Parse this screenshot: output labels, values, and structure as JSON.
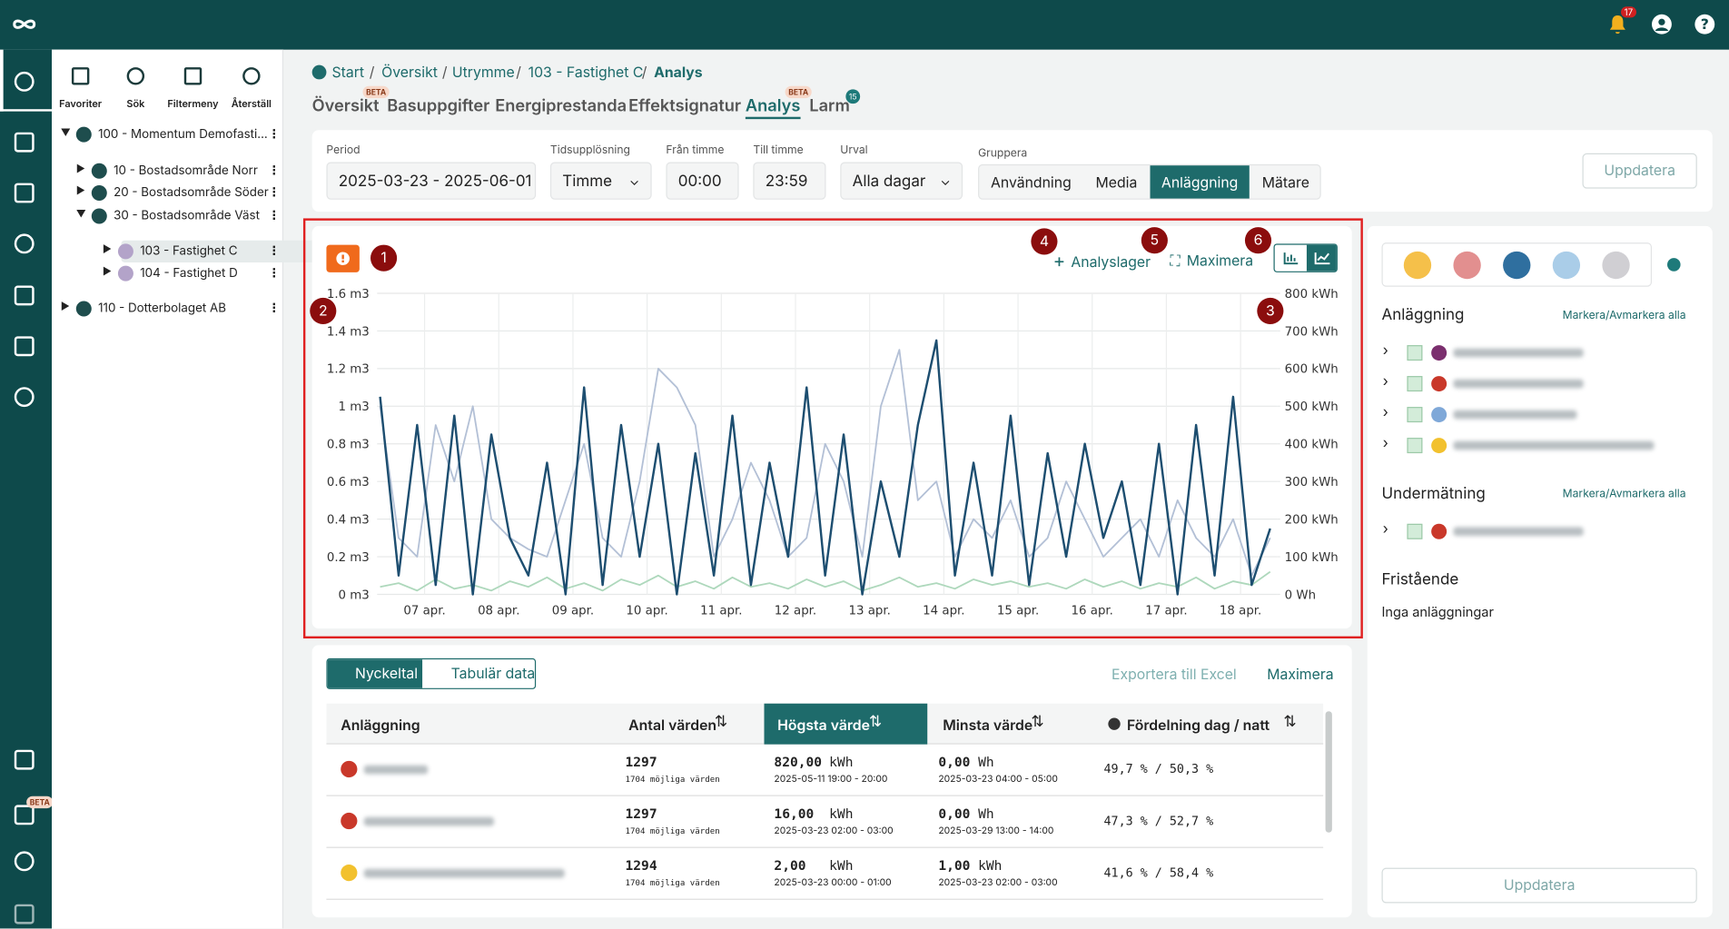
{
  "topbar": {
    "notifications": "17"
  },
  "sidebar": {
    "beta": "BETA"
  },
  "toolbar": [
    "Favoriter",
    "Sök",
    "Filtermeny",
    "Återställ"
  ],
  "tree": [
    {
      "label": "100 - Momentum Demofasti...",
      "level": 0,
      "open": true
    },
    {
      "label": "10 - Bostadsområde Norr",
      "level": 1
    },
    {
      "label": "20 - Bostadsområde Söder",
      "level": 1
    },
    {
      "label": "30 - Bostadsområde Väst",
      "level": 1,
      "open": true
    },
    {
      "label": "103 - Fastighet C",
      "level": 2,
      "selected": true
    },
    {
      "label": "104 - Fastighet D",
      "level": 2
    },
    {
      "label": "110 - Dotterbolaget AB",
      "level": 0
    }
  ],
  "breadcrumb": [
    "Start",
    "Översikt",
    "Utrymme",
    "103 - Fastighet C",
    "Analys"
  ],
  "tabs": [
    {
      "label": "Översikt",
      "badge": "BETA"
    },
    {
      "label": "Basuppgifter"
    },
    {
      "label": "Energiprestanda"
    },
    {
      "label": "Effektsignatur"
    },
    {
      "label": "Analys",
      "badge": "BETA",
      "active": true
    },
    {
      "label": "Larm",
      "count": "15"
    }
  ],
  "filters": {
    "period": {
      "label": "Period",
      "value": "2025-03-23 - 2025-06-01"
    },
    "resolution": {
      "label": "Tidsupplösning",
      "value": "Timme"
    },
    "from": {
      "label": "Från timme",
      "value": "00:00"
    },
    "to": {
      "label": "Till timme",
      "value": "23:59"
    },
    "selection": {
      "label": "Urval",
      "value": "Alla dagar"
    },
    "group": {
      "label": "Gruppera",
      "options": [
        "Användning",
        "Media",
        "Anläggning",
        "Mätare"
      ],
      "active": 2
    },
    "update": "Uppdatera"
  },
  "chart_card": {
    "markers": [
      "1",
      "2",
      "3",
      "4",
      "5",
      "6"
    ],
    "layers": "Analyslager",
    "maximize": "Maximera"
  },
  "chart_data": {
    "type": "line",
    "x": [
      6.4,
      6.65,
      6.9,
      7.15,
      7.4,
      7.65,
      7.9,
      8.15,
      8.4,
      8.65,
      8.9,
      9.15,
      9.4,
      9.65,
      9.9,
      10.15,
      10.4,
      10.65,
      10.9,
      11.15,
      11.4,
      11.65,
      11.9,
      12.15,
      12.4,
      12.65,
      12.9,
      13.15,
      13.4,
      13.65,
      13.9,
      14.15,
      14.4,
      14.65,
      14.9,
      15.15,
      15.4,
      15.65,
      15.9,
      16.15,
      16.4,
      16.65,
      16.9,
      17.15,
      17.4,
      17.65,
      17.9,
      18.15,
      18.4
    ],
    "series": [
      {
        "color": "#b3c0d6",
        "axis": "y2",
        "values": [
          500,
          150,
          100,
          450,
          300,
          500,
          200,
          150,
          120,
          100,
          250,
          400,
          150,
          100,
          300,
          600,
          550,
          450,
          100,
          200,
          350,
          250,
          100,
          150,
          400,
          300,
          100,
          500,
          650,
          250,
          300,
          100,
          200,
          150,
          250,
          100,
          150,
          300,
          200,
          100,
          150,
          200,
          100,
          250,
          150,
          100,
          200,
          50,
          150
        ]
      },
      {
        "color": "#aed8bc",
        "axis": "y2",
        "values": [
          20,
          30,
          10,
          40,
          15,
          25,
          10,
          35,
          20,
          45,
          15,
          30,
          10,
          40,
          25,
          50,
          20,
          35,
          15,
          45,
          20,
          30,
          15,
          40,
          20,
          35,
          10,
          25,
          45,
          20,
          30,
          15,
          40,
          25,
          35,
          20,
          30,
          15,
          40,
          20,
          35,
          15,
          30,
          20,
          45,
          15,
          35,
          25,
          60
        ]
      },
      {
        "color": "#1d4e70",
        "values": [
          1.05,
          0.1,
          0.9,
          0.05,
          0.95,
          0.0,
          0.85,
          0.3,
          0.1,
          0.7,
          0.0,
          1.1,
          0.05,
          0.9,
          0.2,
          0.8,
          0.0,
          0.75,
          0.1,
          0.95,
          0.05,
          0.7,
          0.2,
          1.1,
          0.1,
          0.85,
          0.0,
          0.6,
          0.2,
          0.9,
          1.35,
          0.1,
          0.7,
          0.1,
          0.95,
          0.05,
          0.75,
          0.2,
          0.8,
          0.3,
          0.6,
          0.05,
          0.8,
          0.0,
          0.9,
          0.1,
          1.05,
          0.05,
          0.35
        ]
      }
    ],
    "xlim": [
      6.36,
      18.49
    ],
    "xticks": [
      {
        "value": 7,
        "label": "07 apr."
      },
      {
        "value": 8,
        "label": "08 apr."
      },
      {
        "value": 9,
        "label": "09 apr."
      },
      {
        "value": 10,
        "label": "10 apr."
      },
      {
        "value": 11,
        "label": "11 apr."
      },
      {
        "value": 12,
        "label": "12 apr."
      },
      {
        "value": 13,
        "label": "13 apr."
      },
      {
        "value": 14,
        "label": "14 apr."
      },
      {
        "value": 15,
        "label": "15 apr."
      },
      {
        "value": 16,
        "label": "16 apr."
      },
      {
        "value": 17,
        "label": "17 apr."
      },
      {
        "value": 18,
        "label": "18 apr."
      }
    ],
    "ylim": [
      0,
      1.6
    ],
    "yticks": [
      {
        "value": 0,
        "label": "0 m3"
      },
      {
        "value": 0.2,
        "label": "0.2 m3"
      },
      {
        "value": 0.4,
        "label": "0.4 m3"
      },
      {
        "value": 0.6,
        "label": "0.6 m3"
      },
      {
        "value": 0.8,
        "label": "0.8 m3"
      },
      {
        "value": 1,
        "label": "1 m3"
      },
      {
        "value": 1.2,
        "label": "1.2 m3"
      },
      {
        "value": 1.4,
        "label": "1.4 m3"
      },
      {
        "value": 1.6,
        "label": "1.6 m3"
      }
    ],
    "y2lim": [
      0,
      800
    ],
    "y2ticks": [
      {
        "value": 0,
        "label": "0 Wh"
      },
      {
        "value": 100,
        "label": "100 kWh"
      },
      {
        "value": 200,
        "label": "200 kWh"
      },
      {
        "value": 300,
        "label": "300 kWh"
      },
      {
        "value": 400,
        "label": "400 kWh"
      },
      {
        "value": 500,
        "label": "500 kWh"
      },
      {
        "value": 600,
        "label": "600 kWh"
      },
      {
        "value": 700,
        "label": "700 kWh"
      },
      {
        "value": 800,
        "label": "800 kWh"
      }
    ],
    "grid": true
  },
  "table_card": {
    "tabs": [
      "Nyckeltal",
      "Tabulär data"
    ],
    "export": "Exportera till Excel",
    "maximize": "Maximera",
    "columns": [
      "Anläggning",
      "Antal värden",
      "Högsta värde",
      "Minsta värde",
      "Fördelning dag / natt"
    ],
    "rows": [
      {
        "icon": "#c9382a",
        "count": "1297",
        "possible": "1704 möjliga värden",
        "max": "820,00",
        "max_unit": "kWh",
        "max_time": "2025-05-11 19:00 - 20:00",
        "min": "0,00",
        "min_unit": "Wh",
        "min_time": "2025-03-23 04:00 - 05:00",
        "split": "49,7 % / 50,3 %"
      },
      {
        "icon": "#c9382a",
        "count": "1297",
        "possible": "1704 möjliga värden",
        "max": "16,00",
        "max_unit": "kWh",
        "max_time": "2025-03-23 02:00 - 03:00",
        "min": "0,00",
        "min_unit": "Wh",
        "min_time": "2025-03-29 13:00 - 14:00",
        "split": "47,3 % / 52,7 %"
      },
      {
        "icon": "#f2c12e",
        "count": "1294",
        "possible": "1704 möjliga värden",
        "max": "2,00",
        "max_unit": "kWh",
        "max_time": "2025-03-23 00:00 - 01:00",
        "min": "1,00",
        "min_unit": "kWh",
        "min_time": "2025-03-23 02:00 - 03:00",
        "split": "41,6 % / 58,4 %"
      }
    ]
  },
  "right_panel": {
    "groups": [
      {
        "title": "Anläggning",
        "toggle": "Markera/Avmarkera alla",
        "items": [
          "#7b2f6e",
          "#c9382a",
          "#7fa8d8",
          "#f2c12e"
        ]
      },
      {
        "title": "Undermätning",
        "toggle": "Markera/Avmarkera alla",
        "items": [
          "#c9382a"
        ]
      },
      {
        "title": "Fristående",
        "empty": "Inga anläggningar"
      }
    ],
    "update": "Uppdatera"
  }
}
